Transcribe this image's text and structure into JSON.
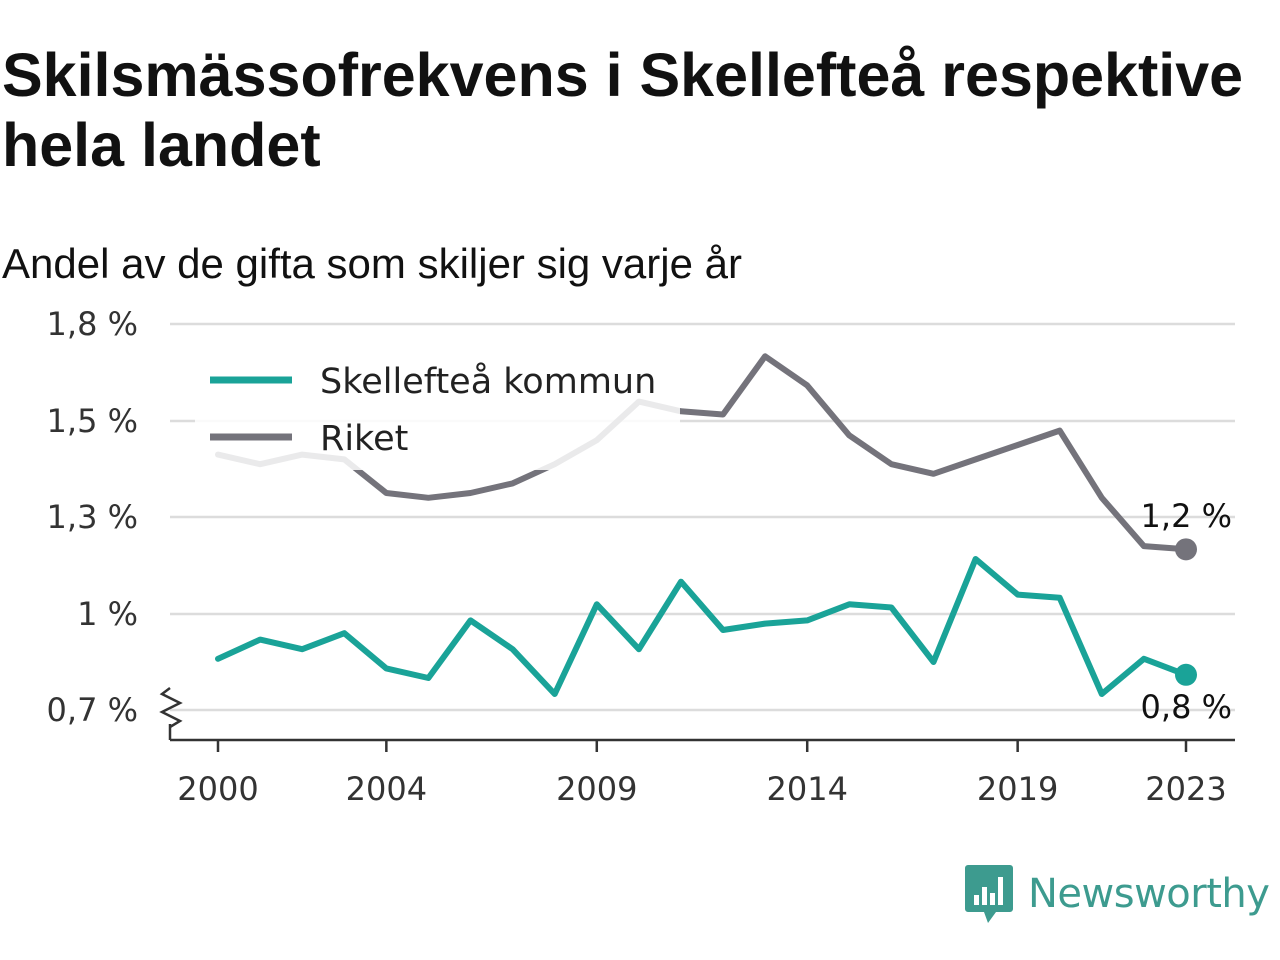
{
  "header": {
    "title": "Skilsmässofrekvens i Skellefteå respektive hela landet",
    "subtitle": "Andel av de gifta som skiljer sig varje år"
  },
  "brand": {
    "name": "Newsworthy",
    "icon": "newsworthy-logo-icon",
    "color": "#3d9b8f"
  },
  "chart_data": {
    "type": "line",
    "title": "Skilsmässofrekvens i Skellefteå respektive hela landet",
    "subtitle": "Andel av de gifta som skiljer sig varje år",
    "xlabel": "",
    "ylabel": "",
    "x": [
      2000,
      2001,
      2002,
      2003,
      2004,
      2005,
      2006,
      2007,
      2008,
      2009,
      2010,
      2011,
      2012,
      2013,
      2014,
      2015,
      2016,
      2017,
      2018,
      2019,
      2020,
      2021,
      2022,
      2023
    ],
    "x_ticks": [
      2000,
      2004,
      2009,
      2014,
      2019,
      2023
    ],
    "y_ticks": [
      0.7,
      1.0,
      1.3,
      1.5,
      1.8
    ],
    "y_tick_labels": [
      "0,7 %",
      "1 %",
      "1,3 %",
      "1,5 %",
      "1,8 %"
    ],
    "ylim": [
      0.7,
      1.8
    ],
    "y_axis_break": true,
    "grid": true,
    "legend_position": "top-left",
    "series": [
      {
        "name": "Skellefteå kommun",
        "color": "#1aa398",
        "values": [
          0.86,
          0.92,
          0.89,
          0.94,
          0.83,
          0.8,
          0.98,
          0.89,
          0.75,
          1.03,
          0.89,
          1.1,
          0.95,
          0.97,
          0.98,
          1.03,
          1.02,
          0.85,
          1.17,
          1.06,
          1.05,
          0.75,
          0.86,
          0.81
        ],
        "end_label": "0,8 %"
      },
      {
        "name": "Riket",
        "color": "#74737b",
        "values": [
          1.43,
          1.41,
          1.43,
          1.42,
          1.35,
          1.34,
          1.35,
          1.37,
          1.41,
          1.46,
          1.56,
          1.53,
          1.52,
          1.7,
          1.61,
          1.47,
          1.41,
          1.39,
          1.42,
          1.45,
          1.48,
          1.34,
          1.21,
          1.2
        ],
        "end_label": "1,2 %"
      }
    ]
  }
}
